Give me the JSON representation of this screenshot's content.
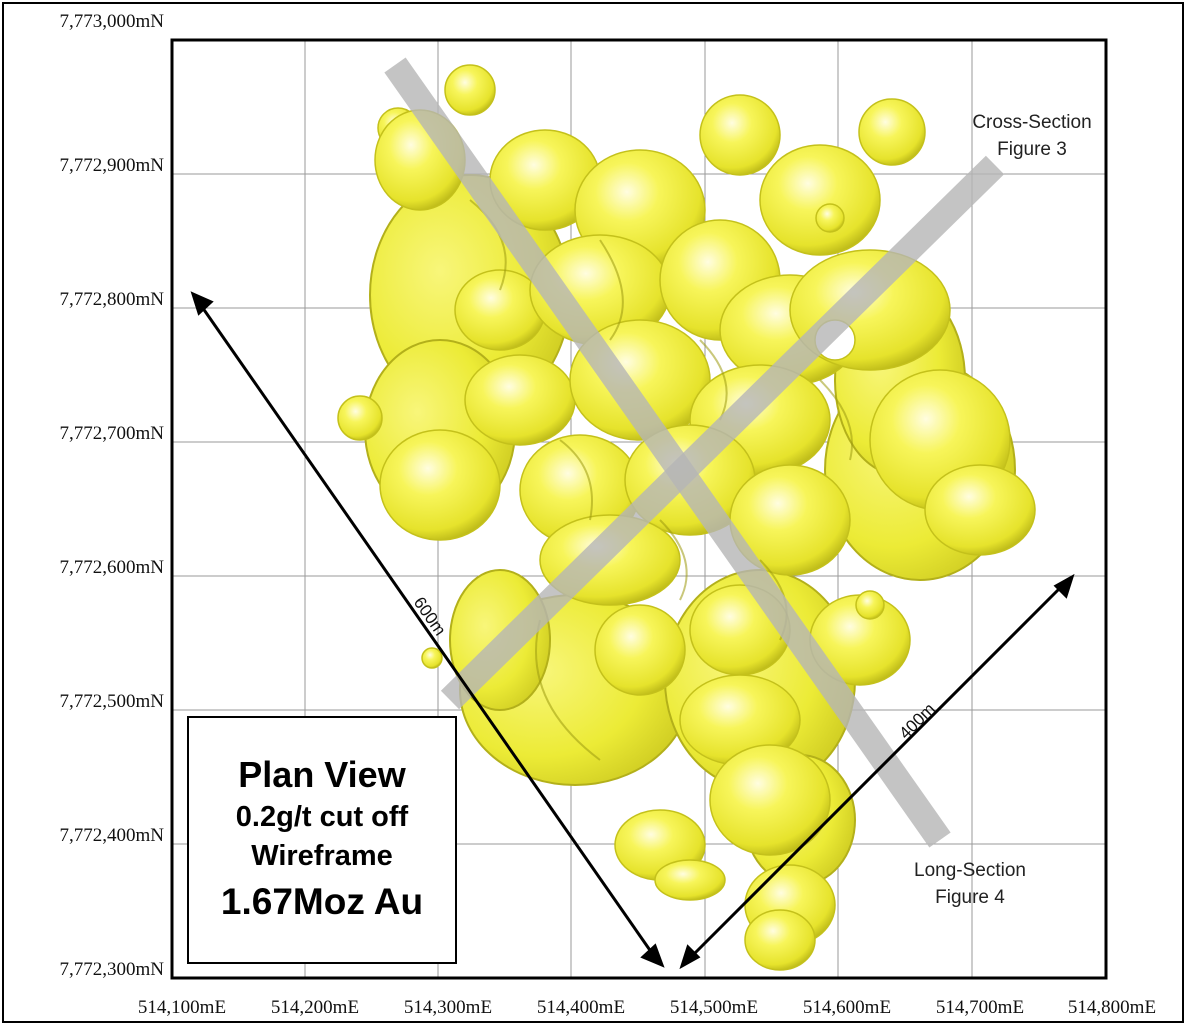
{
  "map": {
    "y_axis_labels": [
      "7,773,000mN",
      "7,772,900mN",
      "7,772,800mN",
      "7,772,700mN",
      "7,772,600mN",
      "7,772,500mN",
      "7,772,400mN",
      "7,772,300mN"
    ],
    "x_axis_labels": [
      "514,100mE",
      "514,200mE",
      "514,300mE",
      "514,400mE",
      "514,500mE",
      "514,600mE",
      "514,700mE",
      "514,800mE"
    ],
    "cross_section": {
      "line1": "Cross-Section",
      "line2": "Figure 3"
    },
    "long_section": {
      "line1": "Long-Section",
      "line2": "Figure 4"
    },
    "dimension_long": "600m",
    "dimension_short": "400m",
    "info": {
      "title": "Plan View",
      "cutoff": "0.2g/t cut off",
      "type": "Wireframe",
      "resource": "1.67Moz Au"
    },
    "colors": {
      "orebody": "#f2f040",
      "orebody_shadow": "#b8b61c",
      "orebody_highlight": "#fdfdb8",
      "section_line": "#bdbdbd",
      "grid": "#999999"
    }
  }
}
